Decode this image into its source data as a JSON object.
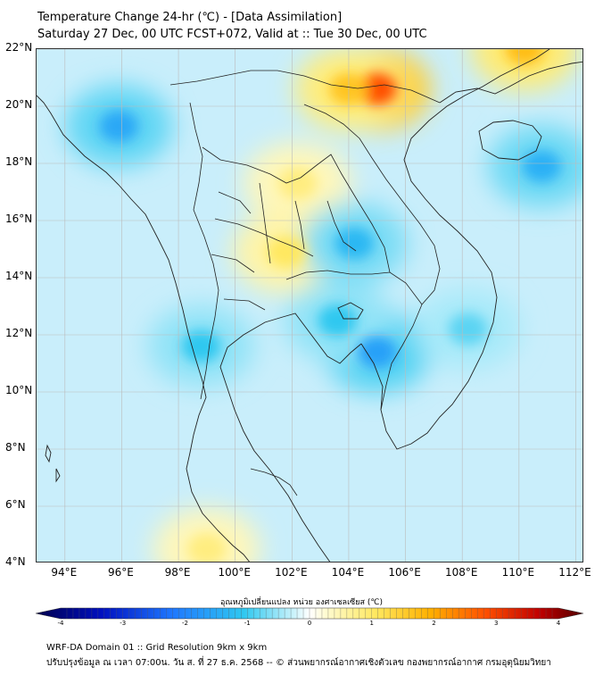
{
  "title": {
    "line1": "Temperature Change 24-hr (℃) - [Data Assimilation]",
    "line2": "Saturday 27 Dec, 00 UTC FCST+072, Valid at :: Tue 30 Dec, 00 UTC"
  },
  "axes": {
    "lat_labels": [
      "22°N",
      "20°N",
      "18°N",
      "16°N",
      "14°N",
      "12°N",
      "10°N",
      "8°N",
      "6°N",
      "4°N"
    ],
    "lon_labels": [
      "94°E",
      "96°E",
      "98°E",
      "100°E",
      "102°E",
      "104°E",
      "106°E",
      "108°E",
      "110°E",
      "112°E"
    ],
    "lat_range": [
      4,
      22
    ],
    "lon_range": [
      93,
      112.3
    ],
    "gridlines": true
  },
  "colorbar": {
    "title": "อุณหภูมิเปลี่ยนแปลง หน่วย องศาเซลเซียส (℃)",
    "ticks": [
      "-4",
      "-3",
      "-2",
      "-1",
      "0",
      "1",
      "2",
      "3",
      "4"
    ],
    "range": [
      -4,
      4
    ]
  },
  "footer": {
    "line1": "WRF-DA Domain 01 :: Grid Resolution 9km x 9km",
    "line2": "ปรับปรุงข้อมูล ณ เวลา 07:00น. วัน ส. ที่ 27 ธ.ค. 2568 -- © ส่วนพยากรณ์อากาศเชิงตัวเลข กองพยากรณ์อากาศ กรมอุตุนิยมวิทยา"
  },
  "colors": {
    "cold_strong": "#00004c",
    "cold": "#1ea0ff",
    "cool": "#9fe0f6",
    "neutral": "#ffffff",
    "warm": "#fff5a0",
    "hot": "#ff6000",
    "hot_strong": "#500000"
  },
  "chart_data": {
    "type": "heatmap",
    "variable": "Temperature Change 24-hr",
    "unit": "℃",
    "features": [
      {
        "name": "warm-red-north-vietnam",
        "lon": 105.0,
        "lat": 20.6,
        "value": 2.5
      },
      {
        "name": "warm-north-laos",
        "lon": 104.0,
        "lat": 20.6,
        "value": 1.5
      },
      {
        "name": "warm-top-right",
        "lon": 110.2,
        "lat": 22.0,
        "value": 1.6
      },
      {
        "name": "warm-central-laos",
        "lon": 102.2,
        "lat": 17.3,
        "value": 0.8
      },
      {
        "name": "warm-central-thailand",
        "lon": 101.8,
        "lat": 14.9,
        "value": 1.0
      },
      {
        "name": "warm-south-bottom",
        "lon": 99.0,
        "lat": 4.5,
        "value": 0.8
      },
      {
        "name": "cold-myanmar-west",
        "lon": 95.9,
        "lat": 19.3,
        "value": -1.4
      },
      {
        "name": "cold-hainan-east",
        "lon": 110.8,
        "lat": 17.9,
        "value": -1.3
      },
      {
        "name": "cold-isan",
        "lon": 104.2,
        "lat": 15.2,
        "value": -1.2
      },
      {
        "name": "cold-cambodia",
        "lon": 105.0,
        "lat": 11.4,
        "value": -1.5
      },
      {
        "name": "cold-gulf",
        "lon": 103.6,
        "lat": 12.5,
        "value": -1.0
      },
      {
        "name": "cold-andaman-coast",
        "lon": 98.8,
        "lat": 11.6,
        "value": -1.0
      },
      {
        "name": "cold-sea-east",
        "lon": 108.2,
        "lat": 12.2,
        "value": -0.8
      }
    ]
  }
}
